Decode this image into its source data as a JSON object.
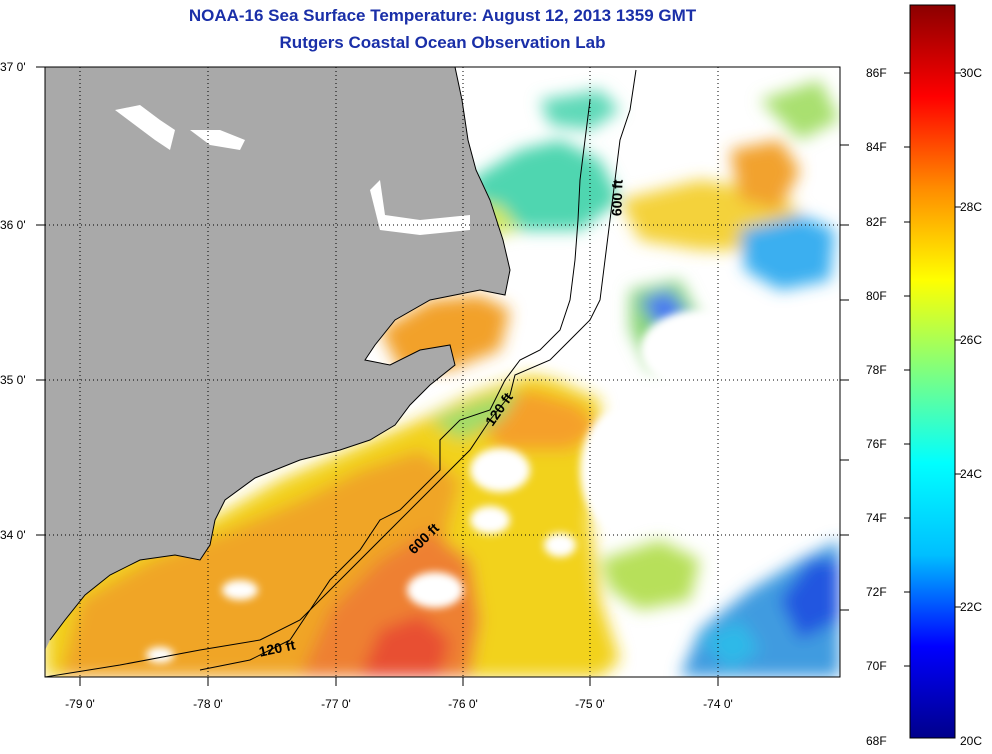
{
  "title_line1": "NOAA-16 Sea Surface Temperature:  August 12, 2013 1359 GMT",
  "title_line2": "Rutgers Coastal Ocean Observation Lab",
  "latitude_labels": [
    "37 0'",
    "36 0'",
    "35 0'",
    "34 0'"
  ],
  "longitude_labels": [
    "-79 0'",
    "-78 0'",
    "-77 0'",
    "-76 0'",
    "-75 0'",
    "-74 0'"
  ],
  "colorbar": {
    "fahrenheit_labels": [
      "86F",
      "84F",
      "82F",
      "80F",
      "78F",
      "76F",
      "74F",
      "72F",
      "70F",
      "68F"
    ],
    "celsius_labels": [
      "30C",
      "28C",
      "26C",
      "24C",
      "22C",
      "20C"
    ],
    "colors": [
      "#00008b",
      "#0000ff",
      "#00bfff",
      "#00ffff",
      "#7fff7f",
      "#ffff00",
      "#ff8c00",
      "#ff0000",
      "#8b0000"
    ]
  },
  "isobath_labels": {
    "north_600": "600 ft",
    "mid_120": "120 ft",
    "mid_600": "600 ft",
    "south_120": "120 ft"
  },
  "colors": {
    "land": "#a9a9a9",
    "no_data": "#ffffff",
    "title": "#1a2fa8"
  }
}
